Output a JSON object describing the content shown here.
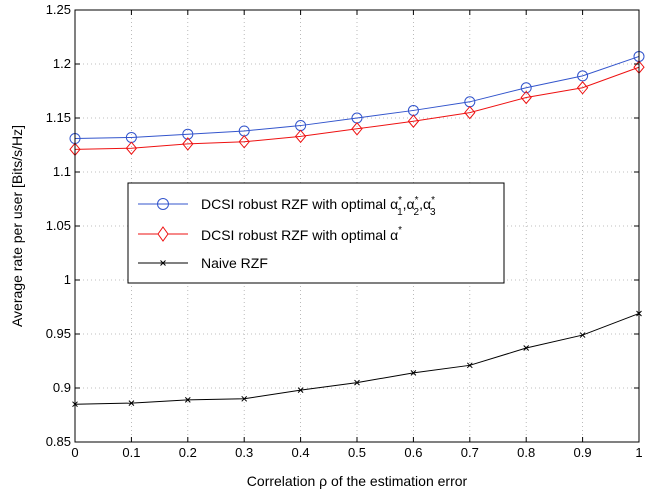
{
  "chart_data": {
    "type": "line",
    "title": "",
    "xlabel": "Correlation ρ of the estimation error",
    "ylabel": "Average rate per user [Bits/s/Hz]",
    "xlim": [
      0,
      1
    ],
    "ylim": [
      0.85,
      1.25
    ],
    "x_ticks": [
      0,
      0.1,
      0.2,
      0.3,
      0.4,
      0.5,
      0.6,
      0.7,
      0.8,
      0.9,
      1
    ],
    "x_tick_labels": [
      "0",
      "0.1",
      "0.2",
      "0.3",
      "0.4",
      "0.5",
      "0.6",
      "0.7",
      "0.8",
      "0.9",
      "1"
    ],
    "y_ticks": [
      0.85,
      0.9,
      0.95,
      1,
      1.05,
      1.1,
      1.15,
      1.2,
      1.25
    ],
    "y_tick_labels": [
      "0.85",
      "0.9",
      "0.95",
      "1",
      "1.05",
      "1.1",
      "1.15",
      "1.2",
      "1.25"
    ],
    "grid": true,
    "legend_position": "center-left",
    "x": [
      0,
      0.1,
      0.2,
      0.3,
      0.4,
      0.5,
      0.6,
      0.7,
      0.8,
      0.9,
      1
    ],
    "series": [
      {
        "name": "DCSI robust RZF with optimal α*1,α*2,α*3",
        "legend_main": "DCSI robust RZF with optimal ",
        "color": "#3355cc",
        "marker": "circle",
        "values": [
          1.131,
          1.132,
          1.135,
          1.138,
          1.143,
          1.15,
          1.157,
          1.165,
          1.178,
          1.189,
          1.207
        ]
      },
      {
        "name": "DCSI robust RZF with optimal α*",
        "legend_main": "DCSI robust RZF with optimal ",
        "color": "#ee1111",
        "marker": "diamond",
        "values": [
          1.121,
          1.122,
          1.126,
          1.128,
          1.133,
          1.14,
          1.147,
          1.155,
          1.169,
          1.178,
          1.197
        ]
      },
      {
        "name": "Naive RZF",
        "legend_main": "Naive RZF",
        "color": "#000000",
        "marker": "x",
        "values": [
          0.885,
          0.886,
          0.889,
          0.89,
          0.898,
          0.905,
          0.914,
          0.921,
          0.937,
          0.949,
          0.969
        ]
      }
    ],
    "legend_symbols": {
      "alpha": "α",
      "star": "*",
      "comma": ",",
      "sub1": "1",
      "sub2": "2",
      "sub3": "3"
    }
  }
}
